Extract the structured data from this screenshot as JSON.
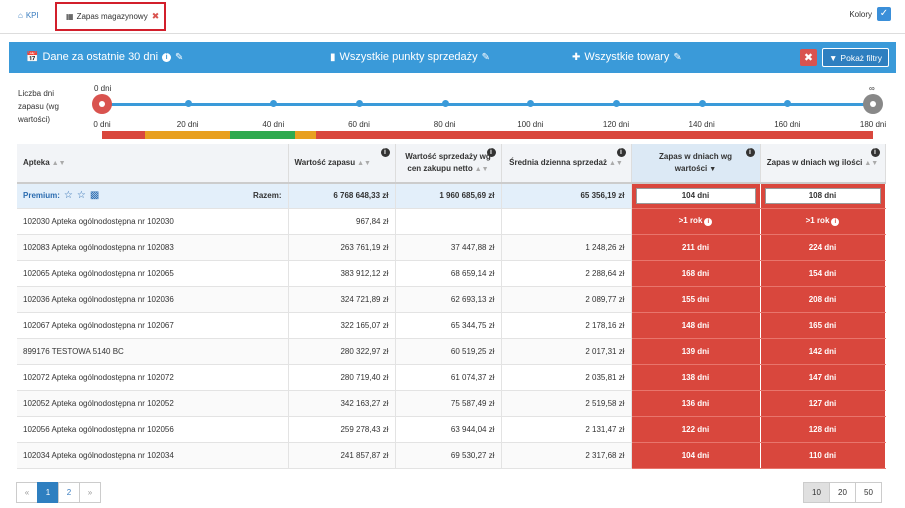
{
  "tabs": {
    "kpi": "KPI",
    "active": "Zapas magazynowy"
  },
  "kolory": {
    "label": "Kolory",
    "checked": true
  },
  "filters": {
    "period": "Dane za ostatnie 30 dni",
    "points": "Wszystkie punkty sprzedaży",
    "products": "Wszystkie towary",
    "show_filters": "Pokaż filtry"
  },
  "slider": {
    "label": "Liczba dni zapasu (wg wartości)",
    "min_label": "0 dni",
    "max_label": "∞",
    "ticks": [
      "0 dni",
      "20 dni",
      "40 dni",
      "60 dni",
      "80 dni",
      "100 dni",
      "120 dni",
      "140 dni",
      "160 dni",
      "180 dni"
    ],
    "range_colors": [
      {
        "from": 0,
        "to": 10,
        "color": "#d9473d"
      },
      {
        "from": 10,
        "to": 30,
        "color": "#e8a020"
      },
      {
        "from": 30,
        "to": 45,
        "color": "#2eaa4f"
      },
      {
        "from": 45,
        "to": 50,
        "color": "#e8a020"
      },
      {
        "from": 50,
        "to": 180,
        "color": "#d9473d"
      }
    ]
  },
  "table": {
    "headers": {
      "apteka": "Apteka",
      "wartosc": "Wartość zapasu",
      "sprzedaz": "Wartość sprzedaży wg cen zakupu netto",
      "srednia": "Średnia dzienna sprzedaż",
      "dni_wartosc": "Zapas w dniach wg wartości",
      "dni_ilosc": "Zapas w dniach wg ilości"
    },
    "summary": {
      "premium": "Premium:",
      "razem": "Razem:",
      "wartosc": "6 768 648,33 zł",
      "sprzedaz": "1 960 685,69 zł",
      "srednia": "65 356,19 zł",
      "dni_wartosc": "104 dni",
      "dni_ilosc": "108 dni"
    },
    "rows": [
      {
        "apteka": "102030 Apteka ogólnodostępna nr 102030",
        "wartosc": "967,84 zł",
        "sprzedaz": "",
        "srednia": "",
        "dni_wartosc": ">1 rok",
        "dni_ilosc": ">1 rok"
      },
      {
        "apteka": "102083 Apteka ogólnodostępna nr 102083",
        "wartosc": "263 761,19 zł",
        "sprzedaz": "37 447,88 zł",
        "srednia": "1 248,26 zł",
        "dni_wartosc": "211 dni",
        "dni_ilosc": "224 dni"
      },
      {
        "apteka": "102065 Apteka ogólnodostępna nr 102065",
        "wartosc": "383 912,12 zł",
        "sprzedaz": "68 659,14 zł",
        "srednia": "2 288,64 zł",
        "dni_wartosc": "168 dni",
        "dni_ilosc": "154 dni"
      },
      {
        "apteka": "102036 Apteka ogólnodostępna nr 102036",
        "wartosc": "324 721,89 zł",
        "sprzedaz": "62 693,13 zł",
        "srednia": "2 089,77 zł",
        "dni_wartosc": "155 dni",
        "dni_ilosc": "208 dni"
      },
      {
        "apteka": "102067 Apteka ogólnodostępna nr 102067",
        "wartosc": "322 165,07 zł",
        "sprzedaz": "65 344,75 zł",
        "srednia": "2 178,16 zł",
        "dni_wartosc": "148 dni",
        "dni_ilosc": "165 dni"
      },
      {
        "apteka": "899176 TESTOWA 5140 BC",
        "wartosc": "280 322,97 zł",
        "sprzedaz": "60 519,25 zł",
        "srednia": "2 017,31 zł",
        "dni_wartosc": "139 dni",
        "dni_ilosc": "142 dni"
      },
      {
        "apteka": "102072 Apteka ogólnodostępna nr 102072",
        "wartosc": "280 719,40 zł",
        "sprzedaz": "61 074,37 zł",
        "srednia": "2 035,81 zł",
        "dni_wartosc": "138 dni",
        "dni_ilosc": "147 dni"
      },
      {
        "apteka": "102052 Apteka ogólnodostępna nr 102052",
        "wartosc": "342 163,27 zł",
        "sprzedaz": "75 587,49 zł",
        "srednia": "2 519,58 zł",
        "dni_wartosc": "136 dni",
        "dni_ilosc": "127 dni"
      },
      {
        "apteka": "102056 Apteka ogólnodostępna nr 102056",
        "wartosc": "259 278,43 zł",
        "sprzedaz": "63 944,04 zł",
        "srednia": "2 131,47 zł",
        "dni_wartosc": "122 dni",
        "dni_ilosc": "128 dni"
      },
      {
        "apteka": "102034 Apteka ogólnodostępna nr 102034",
        "wartosc": "241 857,87 zł",
        "sprzedaz": "69 530,27 zł",
        "srednia": "2 317,68 zł",
        "dni_wartosc": "104 dni",
        "dni_ilosc": "110 dni"
      }
    ]
  },
  "pagination": {
    "prev": "«",
    "pages": [
      "1",
      "2"
    ],
    "next": "»",
    "active": "1"
  },
  "page_size": {
    "options": [
      "10",
      "20",
      "50"
    ],
    "active": "10"
  }
}
